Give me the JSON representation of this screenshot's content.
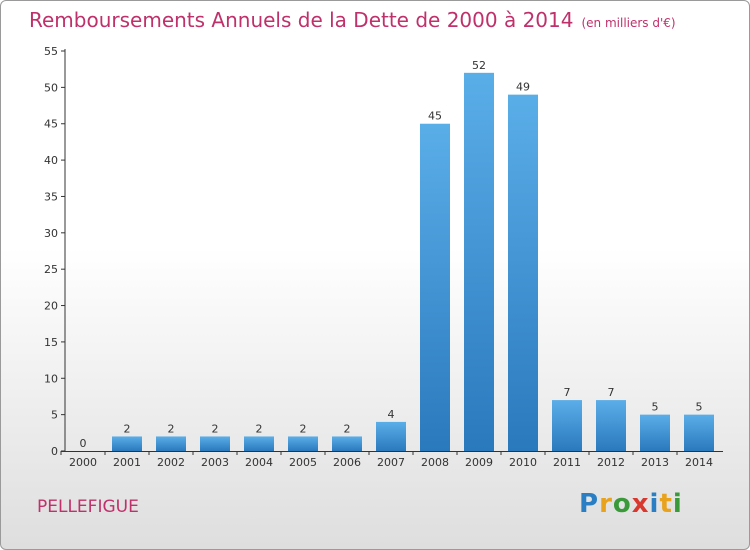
{
  "header": {
    "title": "Remboursements Annuels de la Dette de 2000 à 2014",
    "subtitle": "(en milliers d'€)"
  },
  "footer": {
    "commune": "PELLEFIGUE",
    "logo_letters": [
      "P",
      "r",
      "o",
      "x",
      "i",
      "t",
      "i"
    ]
  },
  "colors": {
    "title": "#c0306a",
    "bar_top": "#5aaee8",
    "bar_bottom": "#2a79bd"
  },
  "chart_data": {
    "type": "bar",
    "title": "Remboursements Annuels de la Dette de 2000 à 2014",
    "subtitle": "(en milliers d'€)",
    "categories": [
      "2000",
      "2001",
      "2002",
      "2003",
      "2004",
      "2005",
      "2006",
      "2007",
      "2008",
      "2009",
      "2010",
      "2011",
      "2012",
      "2013",
      "2014"
    ],
    "values": [
      0,
      2,
      2,
      2,
      2,
      2,
      2,
      4,
      45,
      52,
      49,
      7,
      7,
      5,
      5
    ],
    "ylim": [
      0,
      55
    ],
    "yticks": [
      0,
      5,
      10,
      15,
      20,
      25,
      30,
      35,
      40,
      45,
      50,
      55
    ],
    "grid": false,
    "legend": "none"
  }
}
